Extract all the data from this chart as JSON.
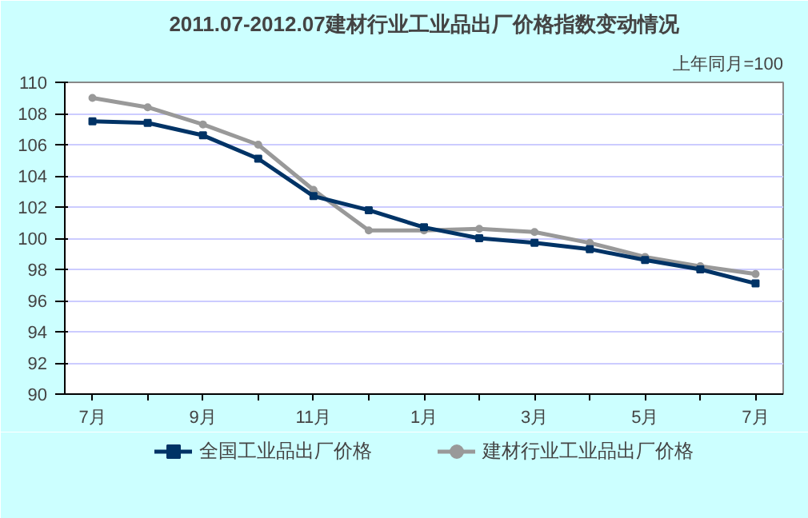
{
  "chart_data": {
    "type": "line",
    "title": "2011.07-2012.07建材行业工业品出厂价格指数变动情况",
    "subtitle": "上年同月=100",
    "categories": [
      "7月",
      null,
      "9月",
      null,
      "11月",
      null,
      "1月",
      null,
      "3月",
      null,
      "5月",
      null,
      "7月"
    ],
    "series": [
      {
        "name": "全国工业品出厂价格",
        "color": "#003366",
        "marker": "square",
        "values": [
          107.5,
          107.4,
          106.6,
          105.1,
          102.7,
          101.8,
          100.7,
          100.0,
          99.7,
          99.3,
          98.6,
          98.0,
          97.1
        ]
      },
      {
        "name": "建材行业工业品出厂价格",
        "color": "#999999",
        "marker": "circle",
        "values": [
          109.0,
          108.4,
          107.3,
          106.0,
          103.1,
          100.5,
          100.5,
          100.6,
          100.4,
          99.7,
          98.8,
          98.2,
          97.7
        ]
      }
    ],
    "ylim": [
      90,
      110
    ],
    "yticks": [
      90,
      92,
      94,
      96,
      98,
      100,
      102,
      104,
      106,
      108,
      110
    ],
    "grid": "y",
    "legend": "bottom",
    "line_style": "solid"
  }
}
